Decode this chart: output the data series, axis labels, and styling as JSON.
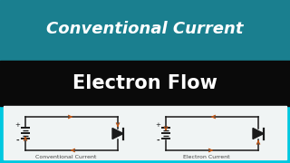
{
  "title1": "Conventional Current",
  "title2": "Electron Flow",
  "label1": "Conventional Current",
  "label2": "Electron Current",
  "bg_teal": "#1a7f8f",
  "bg_black": "#0a0a0a",
  "bg_white": "#f0f4f4",
  "bg_cyan": "#00c8e0",
  "title1_color": "#ffffff",
  "title2_color": "#ffffff",
  "circuit_line_color": "#1a1a1a",
  "arrow_color": "#c05818",
  "diode_color": "#1a1a1a",
  "label_color": "#444444",
  "title1_fontsize": 13,
  "title2_fontsize": 15
}
